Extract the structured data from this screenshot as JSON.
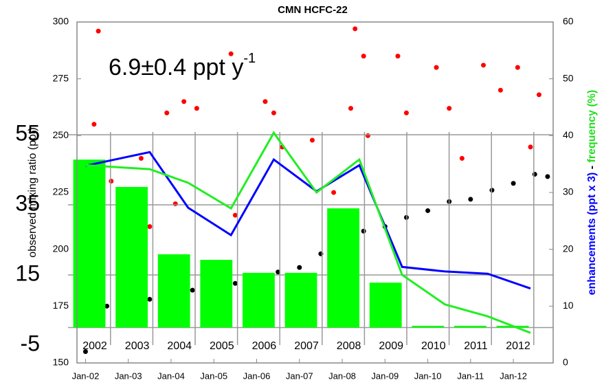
{
  "chart_data": [
    {
      "type": "scatter",
      "title": "CMN HCFC-22",
      "annotation": {
        "text": "6.9±0.4  ppt y",
        "superscript": "-1"
      },
      "ylabel": "observed mixing ratio (ppt)",
      "y2label_separator": " - ",
      "xlim": [
        2001.8,
        2012.93
      ],
      "xticks": [
        {
          "value": 2002,
          "label": "Jan-02"
        },
        {
          "value": 2003,
          "label": "Jan-03"
        },
        {
          "value": 2004,
          "label": "Jan-04"
        },
        {
          "value": 2005,
          "label": "Jan-05"
        },
        {
          "value": 2006,
          "label": "Jan-06"
        },
        {
          "value": 2007,
          "label": "Jan-07"
        },
        {
          "value": 2008,
          "label": "Jan-08"
        },
        {
          "value": 2009,
          "label": "Jan-09"
        },
        {
          "value": 2010,
          "label": "Jan-10"
        },
        {
          "value": 2011,
          "label": "Jan-11"
        },
        {
          "value": 2012,
          "label": "Jan-12"
        }
      ],
      "ylim": [
        150,
        300
      ],
      "yticks": [
        150,
        175,
        200,
        225,
        250,
        275,
        300
      ],
      "y2lim": [
        0,
        60
      ],
      "y2ticks": [
        0,
        10,
        20,
        30,
        40,
        50,
        60
      ],
      "series": [
        {
          "type": "scatter",
          "color": "#ff0000",
          "x": [
            2002.3,
            2002.2,
            2003.3,
            2003.9,
            2004.3,
            2004.6,
            2005.4,
            2006.2,
            2006.4,
            2007.3,
            2008.3,
            2008.5,
            2008.2,
            2009.3,
            2009.5,
            2010.2,
            2010.5,
            2011.3,
            2011.7,
            2012.1,
            2012.6,
            2003.5,
            2005.5,
            2007.8,
            2010.8,
            2012.4,
            2002.6,
            2004.1,
            2006.6,
            2008.6
          ],
          "values": [
            296,
            255,
            240,
            260,
            265,
            262,
            286,
            265,
            260,
            248,
            297,
            285,
            262,
            285,
            260,
            280,
            262,
            281,
            270,
            280,
            268,
            210,
            215,
            225,
            240,
            245,
            230,
            220,
            245,
            250
          ]
        },
        {
          "type": "scatter",
          "color": "#000000",
          "x": [
            2002.0,
            2002.1,
            2002.5,
            2003.0,
            2003.5,
            2004.0,
            2004.5,
            2005.0,
            2005.5,
            2006.0,
            2006.5,
            2007.0,
            2007.5,
            2008.0,
            2008.5,
            2009.0,
            2009.5,
            2010.0,
            2010.5,
            2011.0,
            2011.5,
            2012.0,
            2012.5,
            2012.8
          ],
          "values": [
            155,
            168,
            175,
            172,
            178,
            177,
            182,
            180,
            185,
            184,
            190,
            192,
            198,
            202,
            208,
            210,
            214,
            217,
            221,
            222,
            226,
            229,
            233,
            232
          ]
        },
        {
          "type": "line",
          "axis": "y2",
          "name": "enhancements (ppt x 3)",
          "color": "#0000ff",
          "x": [
            2002.0,
            2003.5,
            2004.4,
            2005.4,
            2006.4,
            2007.4,
            2008.4,
            2009.4,
            2010.4,
            2011.4,
            2012.4
          ],
          "values": [
            34.7,
            37.1,
            27.3,
            22.5,
            35.8,
            30.2,
            34.8,
            16.9,
            16.1,
            15.7,
            13.1
          ]
        },
        {
          "type": "line",
          "axis": "y2",
          "name": "frequency (%)",
          "color": "#22ee22",
          "x": [
            2002.0,
            2003.5,
            2004.4,
            2005.4,
            2006.4,
            2007.4,
            2008.4,
            2009.4,
            2010.4,
            2011.4,
            2012.4
          ],
          "values": [
            34.8,
            34.1,
            31.7,
            27.2,
            40.5,
            30.0,
            35.8,
            15.5,
            10.3,
            8.2,
            5.3
          ]
        }
      ]
    },
    {
      "type": "bar",
      "color": "#00ff00",
      "categories": [
        "2002",
        "2003",
        "2004",
        "2005",
        "2006",
        "2007",
        "2008",
        "2009",
        "2010",
        "2011",
        "2012"
      ],
      "values": [
        47.9,
        40.1,
        20.9,
        19.3,
        15.6,
        15.6,
        34.0,
        12.8,
        0.5,
        0.5,
        0.5
      ],
      "ylim": [
        -5,
        55
      ],
      "yticks": [
        -5,
        15,
        35,
        55
      ],
      "grid": true
    }
  ]
}
